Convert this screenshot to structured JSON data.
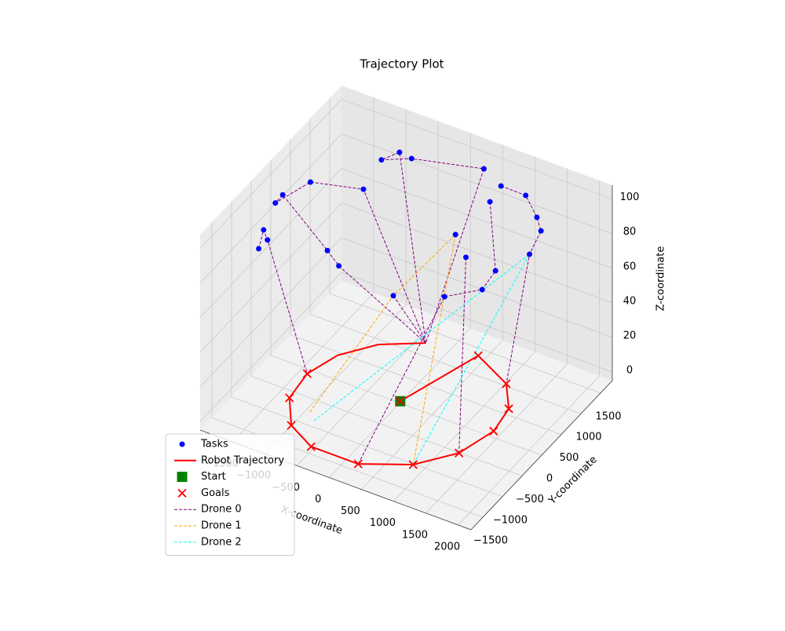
{
  "chart_data": {
    "type": "scatter3d",
    "title": "Trajectory Plot",
    "xlabel": "X-coordinate",
    "ylabel": "Y-coordinate",
    "zlabel": "Z-coordinate",
    "xlim": [
      -2000,
      2200
    ],
    "ylim": [
      -1800,
      1800
    ],
    "zlim": [
      -5,
      108
    ],
    "xticks": [
      {
        "value": -1500,
        "label": "−1500"
      },
      {
        "value": -1000,
        "label": "−1000"
      },
      {
        "value": -500,
        "label": "−500"
      },
      0,
      500,
      1000,
      1500,
      2000
    ],
    "yticks": [
      {
        "value": -1500,
        "label": "−1500"
      },
      {
        "value": -1000,
        "label": "−1000"
      },
      {
        "value": -500,
        "label": "−500"
      },
      0,
      500,
      1000,
      1500
    ],
    "zticks": [
      0,
      20,
      40,
      60,
      80,
      100
    ],
    "grid": true,
    "legend": "lower left",
    "series": [
      {
        "name": "Tasks",
        "color": "blue",
        "marker": "o",
        "linestyle": "none",
        "x": [
          -1070,
          -850,
          -700,
          300,
          590,
          1070,
          540,
          1250,
          1350,
          1190,
          210,
          790,
          560,
          110,
          30,
          -490,
          -1050,
          -1550,
          -1730,
          -1820,
          -1850,
          -1790,
          -1890,
          -1080,
          -970
        ],
        "y": [
          1290,
          1390,
          1450,
          1650,
          1610,
          1450,
          1410,
          1440,
          1380,
          1350,
          1340,
          1140,
          1180,
          960,
          1370,
          640,
          800,
          270,
          -140,
          -180,
          -430,
          -430,
          -490,
          -70,
          40
        ],
        "z": [
          90,
          95,
          92,
          95,
          90,
          95,
          85,
          85,
          80,
          65,
          50,
          55,
          40,
          35,
          60,
          35,
          85,
          95,
          95,
          90,
          80,
          75,
          70,
          70,
          60
        ]
      },
      {
        "name": "Robot Trajectory",
        "color": "red",
        "marker": "none",
        "linestyle": "-",
        "x": [
          -260,
          -790,
          -1140,
          -1290,
          -1230,
          -910,
          -450,
          280,
          920,
          1320,
          1480,
          1410,
          1110,
          480,
          80
        ],
        "y": [
          1090,
          750,
          290,
          -240,
          -790,
          -1270,
          -1520,
          -1520,
          -1170,
          -660,
          -40,
          460,
          890,
          1210,
          -120
        ],
        "z": [
          0,
          0,
          0,
          0,
          0,
          0,
          0,
          0,
          0,
          0,
          0,
          0,
          0,
          0,
          0
        ]
      },
      {
        "name": "Start",
        "color": "green",
        "marker": "s",
        "linestyle": "none",
        "x": [
          80
        ],
        "y": [
          -120
        ],
        "z": [
          0
        ]
      },
      {
        "name": "Goals",
        "color": "red",
        "marker": "x",
        "linestyle": "none",
        "x": [
          -1290,
          -1230,
          -910,
          -450,
          280,
          920,
          1320,
          1480,
          1410,
          1110,
          480,
          80
        ],
        "y": [
          -240,
          -790,
          -1270,
          -1520,
          -1520,
          -1170,
          -660,
          -40,
          460,
          890,
          1210,
          -120
        ],
        "z": [
          0,
          0,
          0,
          0,
          0,
          0,
          0,
          0,
          0,
          0,
          0,
          0
        ]
      },
      {
        "name": "Drone 0",
        "color": "purple",
        "marker": "none",
        "linestyle": "--",
        "x": [
          -260,
          -970,
          -1080,
          -1730,
          -1820,
          -1550,
          -1050,
          -260,
          null,
          -260,
          -850,
          -1070,
          -700,
          300,
          -260,
          null,
          -1890,
          -1850,
          -1790,
          -1290,
          null,
          590,
          1070,
          1250,
          1350,
          1190,
          1110,
          null,
          540,
          790,
          560,
          110,
          280,
          null,
          210,
          1320,
          null,
          -490,
          -260
        ],
        "y": [
          1090,
          40,
          -70,
          -140,
          -180,
          270,
          800,
          1090,
          null,
          1090,
          1390,
          1290,
          1450,
          1650,
          1090,
          null,
          -490,
          -430,
          -430,
          -240,
          null,
          1610,
          1450,
          1440,
          1380,
          1350,
          890,
          null,
          1410,
          1140,
          1180,
          960,
          -1520,
          null,
          1340,
          -660,
          null,
          640,
          1090
        ],
        "z": [
          0,
          60,
          70,
          95,
          90,
          95,
          85,
          0,
          null,
          0,
          95,
          90,
          92,
          95,
          0,
          null,
          70,
          80,
          75,
          0,
          null,
          90,
          95,
          85,
          80,
          65,
          0,
          null,
          85,
          55,
          40,
          35,
          0,
          null,
          50,
          0,
          null,
          35,
          0
        ]
      },
      {
        "name": "Drone 1",
        "color": "orange",
        "marker": "none",
        "linestyle": "--",
        "x": [
          -840,
          -490,
          30,
          920
        ],
        "y": [
          -910,
          640,
          1370,
          -1170
        ],
        "z": [
          0,
          35,
          60,
          0
        ]
      },
      {
        "name": "Drone 2",
        "color": "cyan",
        "marker": "none",
        "linestyle": "--",
        "x": [
          -700,
          1190,
          920
        ],
        "y": [
          -1040,
          1350,
          -1170
        ],
        "z": [
          0,
          65,
          0
        ]
      }
    ]
  }
}
